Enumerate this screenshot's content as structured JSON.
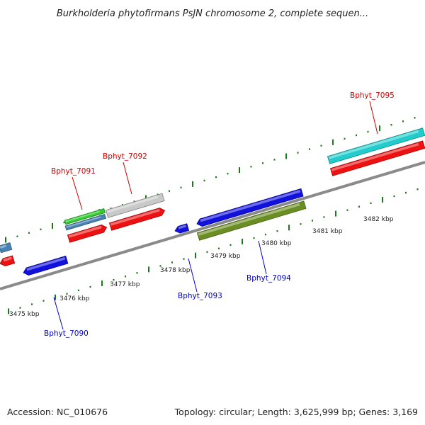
{
  "title": "Burkholderia phytofirmans PsJN chromosome 2, complete sequen...",
  "footer": {
    "accession": "Accession: NC_010676",
    "summary": "Topology: circular; Length: 3,625,999 bp; Genes: 3,169"
  },
  "colors": {
    "backbone": "#8a8a8a",
    "tick": "#1a7a1a",
    "forward_label": "#cc0000",
    "reverse_label": "#0000cc",
    "red": "#ee1111",
    "blue": "#1111dd",
    "cyan": "#22cccc",
    "olive": "#6b8e23",
    "steel": "#4682b4",
    "green": "#33cc33",
    "grey": "#c8c8c8"
  },
  "ticks": [
    {
      "label": "3475 kbp"
    },
    {
      "label": "3476 kbp"
    },
    {
      "label": "3477 kbp"
    },
    {
      "label": "3478 kbp"
    },
    {
      "label": "3479 kbp"
    },
    {
      "label": "3480 kbp"
    },
    {
      "label": "3481 kbp"
    },
    {
      "label": "3482 kbp"
    }
  ],
  "gene_labels": [
    {
      "name": "Bphyt_7091",
      "strand": "forward"
    },
    {
      "name": "Bphyt_7092",
      "strand": "forward"
    },
    {
      "name": "Bphyt_7095",
      "strand": "forward"
    },
    {
      "name": "Bphyt_7090",
      "strand": "reverse"
    },
    {
      "name": "Bphyt_7093",
      "strand": "reverse"
    },
    {
      "name": "Bphyt_7094",
      "strand": "reverse"
    }
  ],
  "features": [
    {
      "color": "steel",
      "dir": "none"
    },
    {
      "color": "red",
      "dir": "left"
    },
    {
      "color": "blue",
      "dir": "left"
    },
    {
      "color": "green",
      "dir": "none"
    },
    {
      "color": "steel",
      "dir": "none"
    },
    {
      "color": "red",
      "dir": "right"
    },
    {
      "color": "grey",
      "dir": "none"
    },
    {
      "color": "red",
      "dir": "right"
    },
    {
      "color": "blue",
      "dir": "left"
    },
    {
      "color": "blue",
      "dir": "left"
    },
    {
      "color": "olive",
      "dir": "none"
    },
    {
      "color": "cyan",
      "dir": "none"
    },
    {
      "color": "red",
      "dir": "none"
    }
  ]
}
